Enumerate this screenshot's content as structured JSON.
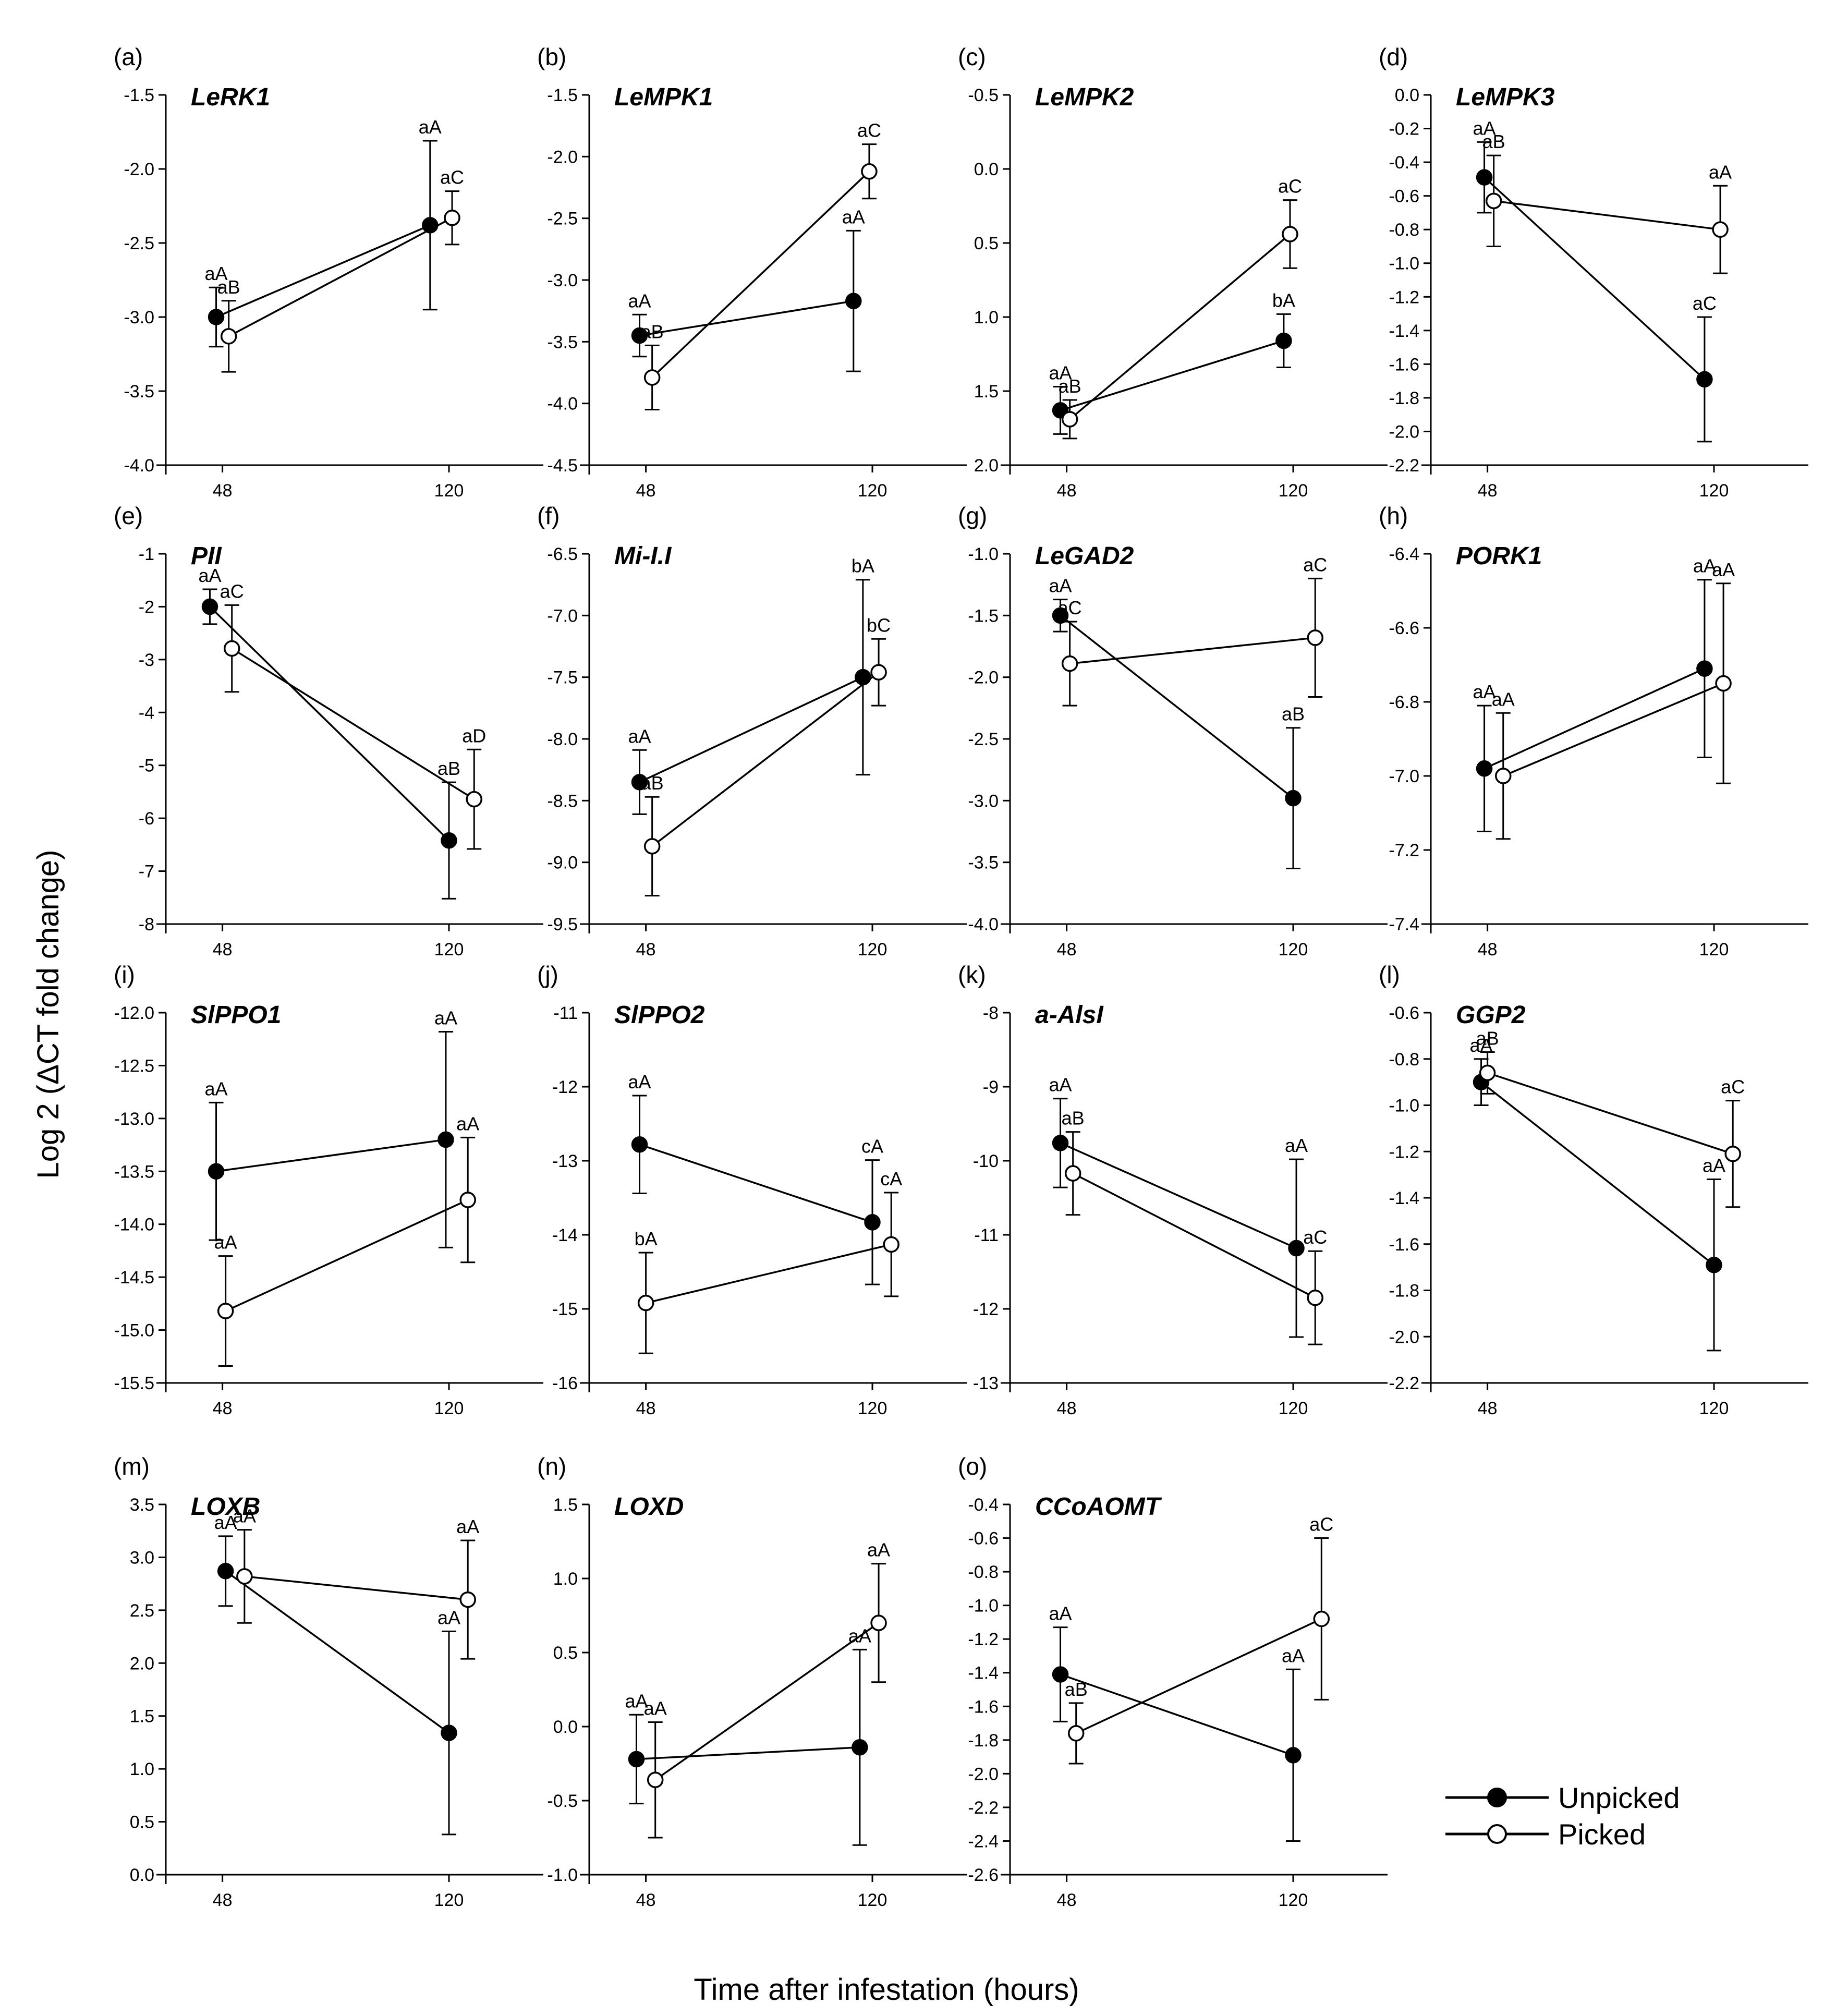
{
  "figure": {
    "ylabel": "Log 2 (ΔCT fold change)",
    "xlabel": "Time after infestation (hours)"
  },
  "legend": [
    {
      "name": "Unpicked",
      "fill": "#000000"
    },
    {
      "name": "Picked",
      "fill": "#ffffff"
    }
  ],
  "chart_data": [
    {
      "type": "line",
      "panel": "(a)",
      "title": "LeRK1",
      "x_ticks": [
        48,
        120
      ],
      "ylim": [
        -4.0,
        -1.5
      ],
      "y_ticks": [
        -4.0,
        -3.5,
        -3.0,
        -2.5,
        -2.0,
        -1.5
      ],
      "tick_decimals": 1,
      "series": [
        {
          "name": "Unpicked",
          "points": [
            {
              "x": 46,
              "y": -3.0,
              "err": 0.2,
              "label": "aA"
            },
            {
              "x": 114,
              "y": -2.38,
              "err": 0.57,
              "label": "aA"
            }
          ]
        },
        {
          "name": "Picked",
          "points": [
            {
              "x": 50,
              "y": -3.13,
              "err": 0.24,
              "label": "aB"
            },
            {
              "x": 121,
              "y": -2.33,
              "err": 0.18,
              "label": "aC"
            }
          ]
        }
      ]
    },
    {
      "type": "line",
      "panel": "(b)",
      "title": "LeMPK1",
      "x_ticks": [
        48,
        120
      ],
      "ylim": [
        -4.5,
        -1.5
      ],
      "y_ticks": [
        -4.5,
        -4.0,
        -3.5,
        -3.0,
        -2.5,
        -2.0,
        -1.5
      ],
      "tick_decimals": 1,
      "series": [
        {
          "name": "Unpicked",
          "points": [
            {
              "x": 46,
              "y": -3.45,
              "err": 0.17,
              "label": "aA"
            },
            {
              "x": 114,
              "y": -3.17,
              "err": 0.57,
              "label": "aA"
            }
          ]
        },
        {
          "name": "Picked",
          "points": [
            {
              "x": 50,
              "y": -3.79,
              "err": 0.26,
              "label": "aB"
            },
            {
              "x": 119,
              "y": -2.12,
              "err": 0.22,
              "label": "aC"
            }
          ]
        }
      ]
    },
    {
      "type": "line",
      "panel": "(c)",
      "title": "LeMPK2",
      "x_ticks": [
        48,
        120
      ],
      "ylim": [
        2.0,
        -0.5
      ],
      "y_ticks": [
        -0.5,
        0.0,
        0.5,
        1.0,
        1.5,
        2.0
      ],
      "tick_decimals": 1,
      "series": [
        {
          "name": "Unpicked",
          "points": [
            {
              "x": 46,
              "y": 1.63,
              "err": 0.16,
              "label": "aA"
            },
            {
              "x": 117,
              "y": 1.16,
              "err": 0.18,
              "label": "bA"
            }
          ]
        },
        {
          "name": "Picked",
          "points": [
            {
              "x": 49,
              "y": 1.69,
              "err": 0.13,
              "label": "aB"
            },
            {
              "x": 119,
              "y": 0.44,
              "err": 0.23,
              "label": "aC"
            }
          ]
        }
      ]
    },
    {
      "type": "line",
      "panel": "(d)",
      "title": "LeMPK3",
      "x_ticks": [
        48,
        120
      ],
      "ylim": [
        -2.2,
        0.0
      ],
      "y_ticks": [
        -2.2,
        -2.0,
        -1.8,
        -1.6,
        -1.4,
        -1.2,
        -1.0,
        -0.8,
        -0.6,
        -0.4,
        -0.2,
        0.0
      ],
      "tick_decimals": 1,
      "series": [
        {
          "name": "Unpicked",
          "points": [
            {
              "x": 47,
              "y": -0.49,
              "err": 0.21,
              "label": "aA"
            },
            {
              "x": 117,
              "y": -1.69,
              "err": 0.37,
              "label": "aC"
            }
          ]
        },
        {
          "name": "Picked",
          "points": [
            {
              "x": 50,
              "y": -0.63,
              "err": 0.27,
              "label": "aB"
            },
            {
              "x": 122,
              "y": -0.8,
              "err": 0.26,
              "label": "aA"
            }
          ]
        }
      ]
    },
    {
      "type": "line",
      "panel": "(e)",
      "title": "PII",
      "x_ticks": [
        48,
        120
      ],
      "ylim": [
        -8,
        -1
      ],
      "y_ticks": [
        -8,
        -7,
        -6,
        -5,
        -4,
        -3,
        -2,
        -1
      ],
      "tick_decimals": 0,
      "series": [
        {
          "name": "Unpicked",
          "points": [
            {
              "x": 44,
              "y": -2.0,
              "err": 0.33,
              "label": "aA"
            },
            {
              "x": 120,
              "y": -6.42,
              "err": 1.1,
              "label": "aB"
            }
          ]
        },
        {
          "name": "Picked",
          "points": [
            {
              "x": 51,
              "y": -2.79,
              "err": 0.82,
              "label": "aC"
            },
            {
              "x": 128,
              "y": -5.64,
              "err": 0.94,
              "label": "aD"
            }
          ]
        }
      ]
    },
    {
      "type": "line",
      "panel": "(f)",
      "title": "Mi-I.I",
      "x_ticks": [
        48,
        120
      ],
      "ylim": [
        -9.5,
        -6.5
      ],
      "y_ticks": [
        -9.5,
        -9.0,
        -8.5,
        -8.0,
        -7.5,
        -7.0,
        -6.5
      ],
      "tick_decimals": 1,
      "series": [
        {
          "name": "Unpicked",
          "points": [
            {
              "x": 46,
              "y": -8.35,
              "err": 0.26,
              "label": "aA"
            },
            {
              "x": 117,
              "y": -7.5,
              "err": 0.79,
              "label": "bA"
            }
          ]
        },
        {
          "name": "Picked",
          "points": [
            {
              "x": 50,
              "y": -8.87,
              "err": 0.4,
              "label": "aB"
            },
            {
              "x": 122,
              "y": -7.46,
              "err": 0.27,
              "label": "bC"
            }
          ]
        }
      ]
    },
    {
      "type": "line",
      "panel": "(g)",
      "title": "LeGAD2",
      "x_ticks": [
        48,
        120
      ],
      "ylim": [
        -4.0,
        -1.0
      ],
      "y_ticks": [
        -4.0,
        -3.5,
        -3.0,
        -2.5,
        -2.0,
        -1.5,
        -1.0
      ],
      "tick_decimals": 1,
      "series": [
        {
          "name": "Unpicked",
          "points": [
            {
              "x": 46,
              "y": -1.5,
              "err": 0.13,
              "label": "aA"
            },
            {
              "x": 120,
              "y": -2.98,
              "err": 0.57,
              "label": "aB"
            }
          ]
        },
        {
          "name": "Picked",
          "points": [
            {
              "x": 49,
              "y": -1.89,
              "err": 0.34,
              "label": "aC"
            },
            {
              "x": 127,
              "y": -1.68,
              "err": 0.48,
              "label": "aC"
            }
          ]
        }
      ]
    },
    {
      "type": "line",
      "panel": "(h)",
      "title": "PORK1",
      "x_ticks": [
        48,
        120
      ],
      "ylim": [
        -7.4,
        -6.4
      ],
      "y_ticks": [
        -7.4,
        -7.2,
        -7.0,
        -6.8,
        -6.6,
        -6.4
      ],
      "tick_decimals": 1,
      "series": [
        {
          "name": "Unpicked",
          "points": [
            {
              "x": 47,
              "y": -6.98,
              "err": 0.17,
              "label": "aA"
            },
            {
              "x": 117,
              "y": -6.71,
              "err": 0.24,
              "label": "aA"
            }
          ]
        },
        {
          "name": "Picked",
          "points": [
            {
              "x": 53,
              "y": -7.0,
              "err": 0.17,
              "label": "aA"
            },
            {
              "x": 123,
              "y": -6.75,
              "err": 0.27,
              "label": "aA"
            }
          ]
        }
      ]
    },
    {
      "type": "line",
      "panel": "(i)",
      "title": "SlPPO1",
      "x_ticks": [
        48,
        120
      ],
      "ylim": [
        -15.5,
        -12.0
      ],
      "y_ticks": [
        -15.5,
        -15.0,
        -14.5,
        -14.0,
        -13.5,
        -13.0,
        -12.5,
        -12.0
      ],
      "tick_decimals": 1,
      "series": [
        {
          "name": "Unpicked",
          "points": [
            {
              "x": 46,
              "y": -13.5,
              "err": 0.65,
              "label": "aA"
            },
            {
              "x": 119,
              "y": -13.2,
              "err": 1.02,
              "label": "aA"
            }
          ]
        },
        {
          "name": "Picked",
          "points": [
            {
              "x": 49,
              "y": -14.82,
              "err": 0.52,
              "label": "aA"
            },
            {
              "x": 126,
              "y": -13.77,
              "err": 0.59,
              "label": "aA"
            }
          ]
        }
      ]
    },
    {
      "type": "line",
      "panel": "(j)",
      "title": "SlPPO2",
      "x_ticks": [
        48,
        120
      ],
      "ylim": [
        -16,
        -11
      ],
      "y_ticks": [
        -16,
        -15,
        -14,
        -13,
        -12,
        -11
      ],
      "tick_decimals": 0,
      "series": [
        {
          "name": "Unpicked",
          "points": [
            {
              "x": 46,
              "y": -12.78,
              "err": 0.66,
              "label": "aA"
            },
            {
              "x": 120,
              "y": -13.83,
              "err": 0.84,
              "label": "cA"
            }
          ]
        },
        {
          "name": "Picked",
          "points": [
            {
              "x": 48,
              "y": -14.92,
              "err": 0.68,
              "label": "bA"
            },
            {
              "x": 126,
              "y": -14.13,
              "err": 0.7,
              "label": "cA"
            }
          ]
        }
      ]
    },
    {
      "type": "line",
      "panel": "(k)",
      "title": "a-AlsI",
      "x_ticks": [
        48,
        120
      ],
      "ylim": [
        -13,
        -8
      ],
      "y_ticks": [
        -13,
        -12,
        -11,
        -10,
        -9,
        -8
      ],
      "tick_decimals": 0,
      "series": [
        {
          "name": "Unpicked",
          "points": [
            {
              "x": 46,
              "y": -9.76,
              "err": 0.6,
              "label": "aA"
            },
            {
              "x": 121,
              "y": -11.18,
              "err": 1.2,
              "label": "aA"
            }
          ]
        },
        {
          "name": "Picked",
          "points": [
            {
              "x": 50,
              "y": -10.17,
              "err": 0.56,
              "label": "aB"
            },
            {
              "x": 127,
              "y": -11.85,
              "err": 0.63,
              "label": "aC"
            }
          ]
        }
      ]
    },
    {
      "type": "line",
      "panel": "(l)",
      "title": "GGP2",
      "x_ticks": [
        48,
        120
      ],
      "ylim": [
        -2.2,
        -0.6
      ],
      "y_ticks": [
        -2.2,
        -2.0,
        -1.8,
        -1.6,
        -1.4,
        -1.2,
        -1.0,
        -0.8,
        -0.6
      ],
      "tick_decimals": 1,
      "series": [
        {
          "name": "Unpicked",
          "points": [
            {
              "x": 46,
              "y": -0.9,
              "err": 0.1,
              "label": "aA"
            },
            {
              "x": 120,
              "y": -1.69,
              "err": 0.37,
              "label": "aA"
            }
          ]
        },
        {
          "name": "Picked",
          "points": [
            {
              "x": 48,
              "y": -0.86,
              "err": 0.09,
              "label": "aB"
            },
            {
              "x": 126,
              "y": -1.21,
              "err": 0.23,
              "label": "aC"
            }
          ]
        }
      ]
    },
    {
      "type": "line",
      "panel": "(m)",
      "title": "LOXB",
      "x_ticks": [
        48,
        120
      ],
      "ylim": [
        0.0,
        3.5
      ],
      "y_ticks": [
        0.0,
        0.5,
        1.0,
        1.5,
        2.0,
        2.5,
        3.0,
        3.5
      ],
      "tick_decimals": 1,
      "series": [
        {
          "name": "Unpicked",
          "points": [
            {
              "x": 49,
              "y": 2.87,
              "err": 0.33,
              "label": "aA"
            },
            {
              "x": 120,
              "y": 1.34,
              "err": 0.96,
              "label": "aA"
            }
          ]
        },
        {
          "name": "Picked",
          "points": [
            {
              "x": 55,
              "y": 2.82,
              "err": 0.44,
              "label": "aA"
            },
            {
              "x": 126,
              "y": 2.6,
              "err": 0.56,
              "label": "aA"
            }
          ]
        }
      ]
    },
    {
      "type": "line",
      "panel": "(n)",
      "title": "LOXD",
      "x_ticks": [
        48,
        120
      ],
      "ylim": [
        -1.0,
        1.5
      ],
      "y_ticks": [
        -1.0,
        -0.5,
        0.0,
        0.5,
        1.0,
        1.5
      ],
      "tick_decimals": 1,
      "series": [
        {
          "name": "Unpicked",
          "points": [
            {
              "x": 45,
              "y": -0.22,
              "err": 0.3,
              "label": "aA"
            },
            {
              "x": 116,
              "y": -0.14,
              "err": 0.66,
              "label": "aA"
            }
          ]
        },
        {
          "name": "Picked",
          "points": [
            {
              "x": 51,
              "y": -0.36,
              "err": 0.39,
              "label": "aA"
            },
            {
              "x": 122,
              "y": 0.7,
              "err": 0.4,
              "label": "aA"
            }
          ]
        }
      ]
    },
    {
      "type": "line",
      "panel": "(o)",
      "title": "CCoAOMT",
      "x_ticks": [
        48,
        120
      ],
      "ylim": [
        -2.6,
        -0.4
      ],
      "y_ticks": [
        -2.6,
        -2.4,
        -2.2,
        -2.0,
        -1.8,
        -1.6,
        -1.4,
        -1.2,
        -1.0,
        -0.8,
        -0.6,
        -0.4
      ],
      "tick_decimals": 1,
      "series": [
        {
          "name": "Unpicked",
          "points": [
            {
              "x": 46,
              "y": -1.41,
              "err": 0.28,
              "label": "aA"
            },
            {
              "x": 120,
              "y": -1.89,
              "err": 0.51,
              "label": "aA"
            }
          ]
        },
        {
          "name": "Picked",
          "points": [
            {
              "x": 51,
              "y": -1.76,
              "err": 0.18,
              "label": "aB"
            },
            {
              "x": 129,
              "y": -1.08,
              "err": 0.48,
              "label": "aC"
            }
          ]
        }
      ]
    }
  ]
}
